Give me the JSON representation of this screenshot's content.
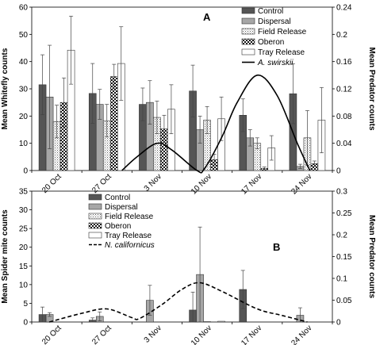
{
  "chart_data": [
    {
      "type": "bar",
      "panel_label": "A",
      "categories": [
        "20 Oct",
        "27 Oct",
        "3 Nov",
        "10 Nov",
        "17 Nov",
        "24 Nov"
      ],
      "ylabel": "Mean Whitefly counts",
      "ylim": [
        0,
        60
      ],
      "yticks": [
        0,
        10,
        20,
        30,
        40,
        50,
        60
      ],
      "y2label": "Mean Predator counts",
      "y2lim": [
        0,
        0.24
      ],
      "y2ticks": [
        "0",
        "0.04",
        "0.08",
        "0.12",
        "0.16",
        "0.2",
        "0.24"
      ],
      "grid": false,
      "legend_position": "top-right",
      "series": [
        {
          "name": "Control",
          "pattern": "dark-gray",
          "values": [
            31.5,
            28.3,
            24.3,
            29.2,
            20.3,
            28.2
          ],
          "errors": [
            11,
            11,
            6,
            9.5,
            6,
            11
          ]
        },
        {
          "name": "Dispersal",
          "pattern": "light-gray",
          "values": [
            27,
            24.3,
            25,
            15,
            12,
            1.5
          ],
          "errors": [
            19,
            5.5,
            8,
            5,
            3,
            0.8
          ]
        },
        {
          "name": "Field Release",
          "pattern": "dotted",
          "values": [
            18,
            18.3,
            19.5,
            18.5,
            10,
            12
          ],
          "errors": [
            6,
            6,
            6,
            5,
            2,
            10
          ]
        },
        {
          "name": "Oberon",
          "pattern": "checkered",
          "values": [
            25,
            34.5,
            15.3,
            4,
            0.8,
            2.5
          ],
          "errors": [
            9,
            4.5,
            5,
            2,
            0.5,
            1
          ]
        },
        {
          "name": "Tray Release",
          "pattern": "white",
          "values": [
            44.2,
            39.3,
            22.5,
            19,
            8.3,
            18.5
          ],
          "errors": [
            12.5,
            13.5,
            9,
            8,
            4.5,
            12
          ]
        }
      ],
      "line_series": {
        "name": "A. swirskii",
        "axis": "secondary",
        "style": "solid",
        "points": [
          [
            1.8,
            0
          ],
          [
            2.1,
            0.02
          ],
          [
            2.5,
            0.04
          ],
          [
            2.8,
            0.03
          ],
          [
            3.3,
            0
          ],
          [
            3.45,
            0.003
          ],
          [
            3.8,
            0.05
          ],
          [
            4.1,
            0.1
          ],
          [
            4.5,
            0.14
          ],
          [
            4.9,
            0.11
          ],
          [
            5.3,
            0.04
          ],
          [
            5.55,
            0
          ]
        ]
      }
    },
    {
      "type": "bar",
      "panel_label": "B",
      "categories": [
        "20 Oct",
        "27 Oct",
        "3 Nov",
        "10 Nov",
        "17 Nov",
        "24 Nov"
      ],
      "ylabel": "Mean Spider mite  counts",
      "ylim": [
        0,
        35
      ],
      "yticks": [
        0,
        5,
        10,
        15,
        20,
        25,
        30,
        35
      ],
      "y2label": "Mean Predator counts",
      "y2lim": [
        0,
        0.3
      ],
      "y2ticks": [
        "0",
        "0.05",
        "0.1",
        "0.15",
        "0.2",
        "0.25",
        "0.3"
      ],
      "grid": false,
      "legend_position": "top-left",
      "series": [
        {
          "name": "Control",
          "pattern": "dark-gray",
          "values": [
            2,
            0.5,
            0,
            3.2,
            8.7,
            0
          ],
          "errors": [
            2,
            0.6,
            0,
            4.8,
            5.1,
            0
          ]
        },
        {
          "name": "Dispersal",
          "pattern": "light-gray",
          "values": [
            2,
            1.5,
            5.8,
            12.7,
            0,
            1.8
          ],
          "errors": [
            0.5,
            1.2,
            4,
            12.7,
            0,
            2
          ]
        },
        {
          "name": "Field Release",
          "pattern": "dotted",
          "values": [
            0,
            0,
            0,
            0.1,
            0,
            0
          ],
          "errors": [
            0,
            0,
            0,
            0,
            0,
            0
          ]
        },
        {
          "name": "Oberon",
          "pattern": "checkered",
          "values": [
            0,
            0,
            0,
            0,
            0,
            0
          ],
          "errors": [
            0,
            0,
            0,
            0,
            0,
            0
          ]
        },
        {
          "name": "Tray Release",
          "pattern": "white",
          "values": [
            0,
            0,
            0,
            0.2,
            0,
            0
          ],
          "errors": [
            0,
            0,
            0,
            0,
            0,
            0
          ]
        }
      ],
      "line_series": {
        "name": "N. californicus",
        "axis": "secondary",
        "style": "dashed",
        "points": [
          [
            0.35,
            0
          ],
          [
            1,
            0.02
          ],
          [
            1.5,
            0.03
          ],
          [
            2,
            0.01
          ],
          [
            2.15,
            0.008
          ],
          [
            2.6,
            0.04
          ],
          [
            3,
            0.075
          ],
          [
            3.35,
            0.09
          ],
          [
            3.8,
            0.07
          ],
          [
            4.5,
            0.03
          ],
          [
            5,
            0.015
          ],
          [
            5.5,
            0
          ]
        ]
      }
    }
  ]
}
